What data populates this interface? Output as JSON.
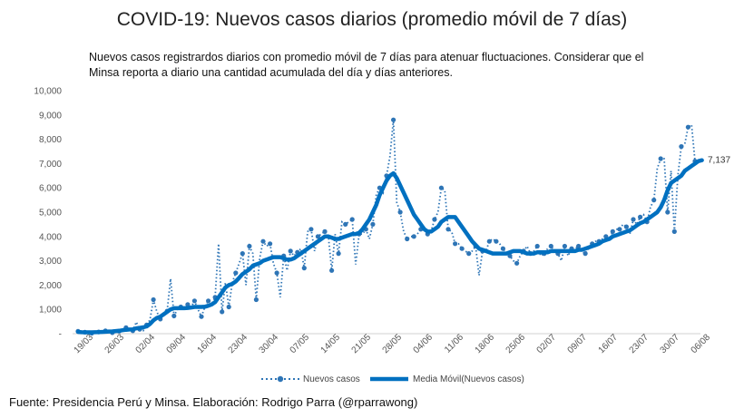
{
  "header": {
    "title": "COVID-19: Nuevos casos diarios (promedio móvil de 7 días)",
    "subtitle": "Nuevos casos registrardos diarios con promedio móvil de 7 días para atenuar fluctuaciones. Considerar que el Minsa reporta a diario una cantidad acumulada del día y días anteriores."
  },
  "footer": {
    "source": "Fuente: Presidencia Perú y Minsa. Elaboración: Rodrigo Parra (@rparrawong)"
  },
  "chart_data": {
    "type": "line",
    "title": "COVID-19: Nuevos casos diarios (promedio móvil de 7 días)",
    "ylim": [
      0,
      10000
    ],
    "y_ticks": [
      "-",
      "1,000",
      "2,000",
      "3,000",
      "4,000",
      "5,000",
      "6,000",
      "7,000",
      "8,000",
      "9,000",
      "10,000"
    ],
    "x_tick_labels": [
      "19/03",
      "26/03",
      "02/04",
      "09/04",
      "16/04",
      "23/04",
      "30/04",
      "07/05",
      "14/05",
      "21/05",
      "28/05",
      "04/06",
      "11/06",
      "18/06",
      "25/06",
      "02/07",
      "09/07",
      "16/07",
      "23/07",
      "30/07",
      "06/08"
    ],
    "end_label": "7,137",
    "legend_position": "bottom",
    "series": [
      {
        "name": "Nuevos casos",
        "style": "dotted-markers",
        "color": "#2E75B6",
        "values": [
          100,
          40,
          60,
          40,
          20,
          60,
          70,
          80,
          120,
          90,
          40,
          150,
          100,
          180,
          250,
          150,
          120,
          480,
          180,
          120,
          360,
          570,
          1400,
          900,
          600,
          850,
          930,
          2260,
          730,
          1000,
          1100,
          1000,
          1200,
          1100,
          1350,
          1000,
          700,
          1100,
          1350,
          1250,
          1500,
          3700,
          900,
          2100,
          1100,
          2100,
          2500,
          2900,
          3300,
          2000,
          3600,
          3300,
          1400,
          3100,
          3800,
          3600,
          3700,
          2900,
          2500,
          1500,
          3200,
          2600,
          3400,
          3200,
          3350,
          3500,
          2700,
          4200,
          4300,
          3400,
          4000,
          4100,
          4200,
          4050,
          2600,
          4100,
          3300,
          4600,
          4500,
          4600,
          4700,
          2850,
          4100,
          4100,
          4300,
          3900,
          4500,
          5700,
          6000,
          5800,
          6500,
          7300,
          8800,
          5400,
          5000,
          4200,
          3900,
          4000,
          4000,
          4100,
          4300,
          4400,
          4100,
          4200,
          4700,
          5000,
          6000,
          5900,
          4300,
          4200,
          3700,
          3700,
          3500,
          3400,
          3300,
          3400,
          3600,
          2400,
          3400,
          3400,
          3800,
          3900,
          3800,
          3700,
          3500,
          3300,
          3200,
          3000,
          2900,
          3200,
          3400,
          3600,
          3300,
          3400,
          3600,
          3200,
          3300,
          3500,
          3600,
          3400,
          3300,
          3000,
          3600,
          3200,
          3500,
          3500,
          3600,
          3400,
          3300,
          3500,
          3700,
          3800,
          3800,
          3900,
          4000,
          3900,
          4200,
          4300,
          4300,
          4500,
          4400,
          4100,
          4700,
          4500,
          4800,
          4900,
          4600,
          5200,
          5500,
          6800,
          7200,
          7200,
          5000,
          6700,
          4200,
          6500,
          7700,
          7800,
          8500,
          8600,
          7100
        ]
      },
      {
        "name": "Media Móvil(Nuevos casos)",
        "style": "thick-line",
        "color": "#0070C0",
        "values": [
          70,
          60,
          55,
          55,
          55,
          60,
          65,
          70,
          80,
          90,
          95,
          110,
          120,
          140,
          160,
          170,
          180,
          220,
          240,
          260,
          300,
          400,
          550,
          650,
          700,
          800,
          900,
          1000,
          1050,
          1050,
          1050,
          1050,
          1060,
          1080,
          1100,
          1100,
          1100,
          1110,
          1150,
          1200,
          1300,
          1500,
          1700,
          1900,
          2000,
          2050,
          2150,
          2300,
          2450,
          2550,
          2650,
          2800,
          2850,
          2900,
          3000,
          3050,
          3100,
          3150,
          3150,
          3150,
          3100,
          3050,
          3050,
          3100,
          3200,
          3300,
          3400,
          3500,
          3600,
          3700,
          3800,
          3900,
          4000,
          4000,
          3950,
          3900,
          3900,
          3950,
          4000,
          4050,
          4100,
          4100,
          4150,
          4300,
          4500,
          4700,
          5000,
          5300,
          5700,
          6000,
          6300,
          6500,
          6600,
          6400,
          6100,
          5800,
          5500,
          5200,
          4900,
          4700,
          4500,
          4300,
          4200,
          4200,
          4300,
          4400,
          4600,
          4700,
          4800,
          4800,
          4800,
          4600,
          4400,
          4200,
          4000,
          3800,
          3650,
          3500,
          3450,
          3400,
          3350,
          3300,
          3300,
          3300,
          3300,
          3300,
          3350,
          3400,
          3400,
          3400,
          3350,
          3300,
          3300,
          3300,
          3350,
          3350,
          3350,
          3350,
          3400,
          3400,
          3400,
          3400,
          3400,
          3400,
          3400,
          3400,
          3450,
          3450,
          3500,
          3550,
          3600,
          3650,
          3700,
          3800,
          3850,
          3900,
          4000,
          4050,
          4100,
          4150,
          4200,
          4250,
          4350,
          4450,
          4550,
          4600,
          4700,
          4800,
          4900,
          5000,
          5200,
          5500,
          5900,
          6200,
          6300,
          6400,
          6500,
          6700,
          6800,
          6900,
          7000,
          7100,
          7137
        ]
      }
    ]
  }
}
